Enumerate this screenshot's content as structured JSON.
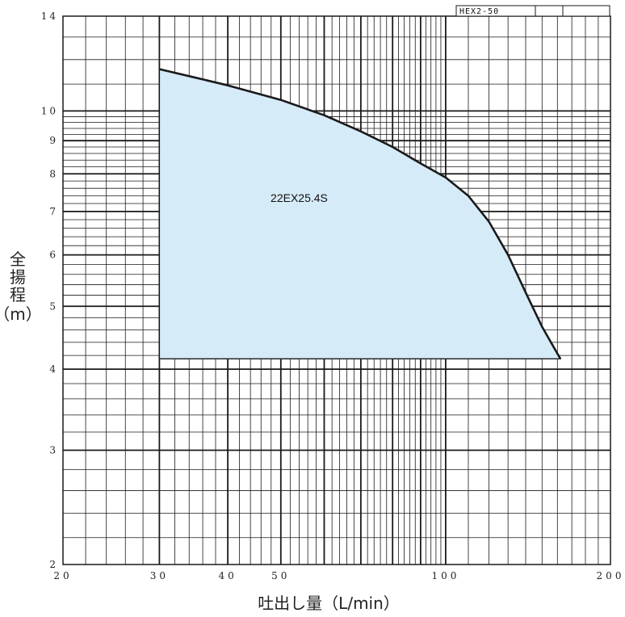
{
  "chart_data": {
    "type": "area",
    "scale": "log-log",
    "xlabel": "吐出し量（L/min）",
    "ylabel_chars": [
      "全",
      "揚",
      "程"
    ],
    "ylabel_unit": "（m）",
    "model_code": "HEX2-50",
    "xlim": [
      20,
      200
    ],
    "ylim": [
      2,
      14
    ],
    "x_tick_labels": [
      {
        "value": 20,
        "label": "20"
      },
      {
        "value": 30,
        "label": "30"
      },
      {
        "value": 40,
        "label": "40"
      },
      {
        "value": 50,
        "label": "50"
      },
      {
        "value": 100,
        "label": "100"
      },
      {
        "value": 200,
        "label": "200"
      }
    ],
    "y_tick_labels": [
      {
        "value": 2,
        "label": "2"
      },
      {
        "value": 3,
        "label": "3"
      },
      {
        "value": 4,
        "label": "4"
      },
      {
        "value": 5,
        "label": "5"
      },
      {
        "value": 6,
        "label": "6"
      },
      {
        "value": 7,
        "label": "7"
      },
      {
        "value": 8,
        "label": "8"
      },
      {
        "value": 9,
        "label": "9"
      },
      {
        "value": 10,
        "label": "10"
      },
      {
        "value": 14,
        "label": "14"
      }
    ],
    "x_major_grid": [
      30,
      40,
      50,
      60,
      70,
      80,
      90,
      100
    ],
    "x_minor_grid": [
      22,
      24,
      26,
      28,
      32,
      34,
      36,
      38,
      42,
      44,
      46,
      48,
      52,
      54,
      56,
      58,
      62,
      64,
      66,
      68,
      72,
      74,
      76,
      78,
      82,
      84,
      86,
      88,
      92,
      94,
      96,
      98,
      110,
      120,
      130,
      140,
      150,
      160,
      170,
      180,
      190
    ],
    "y_major_grid": [
      3,
      4,
      5,
      6,
      7,
      8,
      9,
      10
    ],
    "y_minor_grid": [
      2.2,
      2.4,
      2.6,
      2.8,
      3.2,
      3.4,
      3.6,
      3.8,
      4.2,
      4.4,
      4.6,
      4.8,
      5.2,
      5.4,
      5.6,
      5.8,
      6.2,
      6.4,
      6.6,
      6.8,
      7.2,
      7.4,
      7.6,
      7.8,
      8.2,
      8.4,
      8.6,
      8.8,
      9.2,
      9.4,
      9.6,
      9.8,
      11,
      12,
      13
    ],
    "series": [
      {
        "name": "22EX25.4S",
        "label_at": [
          54,
          7.2
        ],
        "fill": "#d6ebf8",
        "stroke": "#1a1a1a",
        "curve": [
          [
            30,
            11.6
          ],
          [
            35,
            11.25
          ],
          [
            40,
            10.95
          ],
          [
            50,
            10.4
          ],
          [
            60,
            9.85
          ],
          [
            70,
            9.3
          ],
          [
            80,
            8.8
          ],
          [
            90,
            8.3
          ],
          [
            100,
            7.9
          ],
          [
            110,
            7.4
          ],
          [
            120,
            6.75
          ],
          [
            130,
            6.0
          ],
          [
            140,
            5.25
          ],
          [
            150,
            4.65
          ],
          [
            162,
            4.15
          ]
        ],
        "base_y": 4.15,
        "x_start": 30
      }
    ]
  }
}
